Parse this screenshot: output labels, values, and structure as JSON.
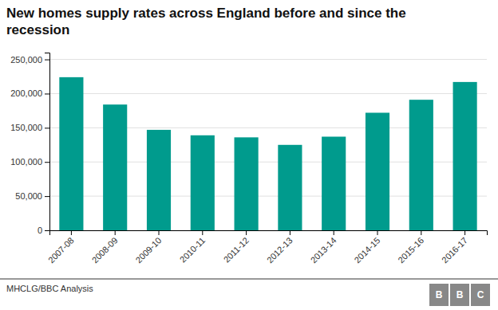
{
  "chart_data": {
    "type": "bar",
    "title": "New homes supply rates across England before and since the\nrecession",
    "categories": [
      "2007-08",
      "2008-09",
      "2009-10",
      "2010-11",
      "2011-12",
      "2012-13",
      "2013-14",
      "2014-15",
      "2015-16",
      "2016-17"
    ],
    "values": [
      224000,
      184000,
      147000,
      139000,
      136000,
      125000,
      137000,
      172000,
      191000,
      217000
    ],
    "color": "#009B8D",
    "ylim": [
      0,
      260000
    ],
    "yticks": [
      0,
      {
        "value": 50000,
        "label": "50,000"
      },
      {
        "value": 100000,
        "label": "100,000"
      },
      {
        "value": 150000,
        "label": "150,000"
      },
      {
        "value": 200000,
        "label": "200,000"
      },
      {
        "value": 250000,
        "label": "250,000"
      }
    ],
    "grid": true,
    "annotations": [
      "MHCLG/BBC Analysis",
      "BBC"
    ]
  }
}
